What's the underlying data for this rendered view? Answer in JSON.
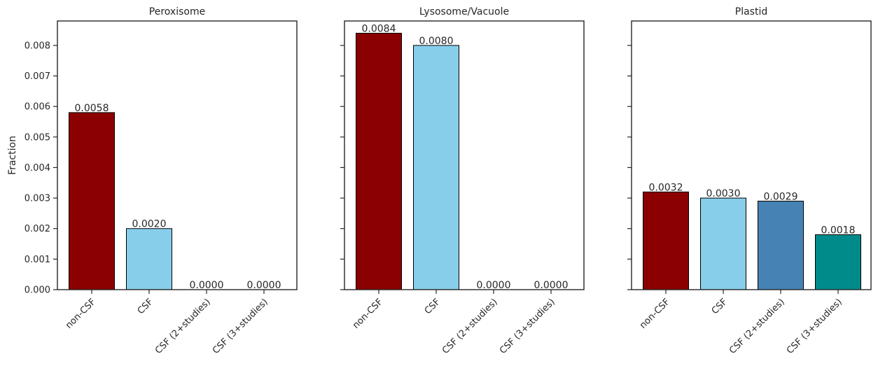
{
  "chart_data": [
    {
      "type": "bar",
      "title": "Peroxisome",
      "ylabel": "Fraction",
      "categories": [
        "non-CSF",
        "CSF",
        "CSF (2+studies)",
        "CSF (3+studies)"
      ],
      "values": [
        0.0058,
        0.002,
        0.0,
        0.0
      ],
      "value_labels": [
        "0.0058",
        "0.0020",
        "0.0000",
        "0.0000"
      ],
      "colors": [
        "#8b0000",
        "#87ceeb",
        "#4682b4",
        "#008b8b"
      ],
      "ylim": [
        0,
        0.0088
      ],
      "yticks": [
        0,
        0.001,
        0.002,
        0.003,
        0.004,
        0.005,
        0.006,
        0.007,
        0.008
      ],
      "ytick_labels": [
        "0.000",
        "0.001",
        "0.002",
        "0.003",
        "0.004",
        "0.005",
        "0.006",
        "0.007",
        "0.008"
      ],
      "grid": false
    },
    {
      "type": "bar",
      "title": "Lysosome/Vacuole",
      "categories": [
        "non-CSF",
        "CSF",
        "CSF (2+studies)",
        "CSF (3+studies)"
      ],
      "values": [
        0.0084,
        0.008,
        0.0,
        0.0
      ],
      "value_labels": [
        "0.0084",
        "0.0080",
        "0.0000",
        "0.0000"
      ],
      "colors": [
        "#8b0000",
        "#87ceeb",
        "#4682b4",
        "#008b8b"
      ],
      "ylim": [
        0,
        0.0088
      ],
      "grid": false
    },
    {
      "type": "bar",
      "title": "Plastid",
      "categories": [
        "non-CSF",
        "CSF",
        "CSF (2+studies)",
        "CSF (3+studies)"
      ],
      "values": [
        0.0032,
        0.003,
        0.0029,
        0.0018
      ],
      "value_labels": [
        "0.0032",
        "0.0030",
        "0.0029",
        "0.0018"
      ],
      "colors": [
        "#8b0000",
        "#87ceeb",
        "#4682b4",
        "#008b8b"
      ],
      "ylim": [
        0,
        0.0088
      ],
      "grid": false
    }
  ]
}
